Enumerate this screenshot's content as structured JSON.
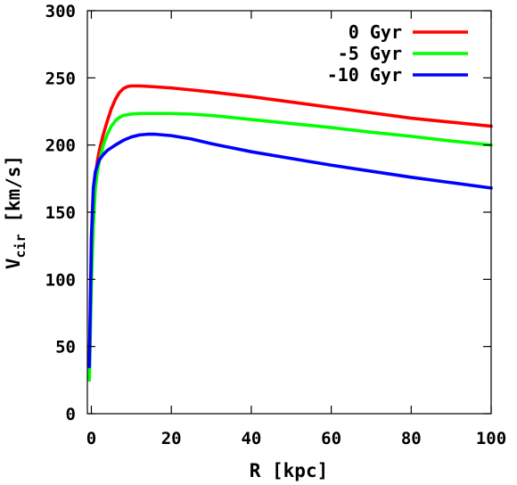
{
  "chart_data": {
    "type": "line",
    "xlabel": "R [kpc]",
    "ylabel_main": "V",
    "ylabel_sub": "cir",
    "ylabel_unit": " [km/s]",
    "xlim": [
      -1,
      100
    ],
    "ylim": [
      0,
      300
    ],
    "xticks": [
      0,
      20,
      40,
      60,
      80,
      100
    ],
    "yticks": [
      0,
      50,
      100,
      150,
      200,
      250,
      300
    ],
    "grid": false,
    "legend_position": "top-right",
    "series": [
      {
        "name": "0 Gyr",
        "color": "#ff0000",
        "x": [
          -0.5,
          0,
          0.5,
          1,
          1.5,
          2,
          3,
          4,
          5,
          6,
          7,
          8,
          9,
          10,
          12,
          15,
          20,
          25,
          30,
          40,
          50,
          60,
          70,
          80,
          90,
          100
        ],
        "y": [
          40,
          110,
          150,
          175,
          188,
          196,
          208,
          218,
          227,
          234,
          239,
          242,
          243.5,
          244,
          244,
          243.5,
          242.5,
          241,
          239.5,
          236,
          232,
          228,
          224,
          220,
          217,
          214
        ]
      },
      {
        "name": "-5 Gyr",
        "color": "#00ff00",
        "x": [
          -0.5,
          0,
          0.5,
          1,
          1.5,
          2,
          3,
          4,
          5,
          6,
          7,
          8,
          10,
          12,
          15,
          20,
          25,
          30,
          40,
          50,
          60,
          70,
          80,
          90,
          100
        ],
        "y": [
          25,
          95,
          140,
          168,
          180,
          188,
          200,
          208,
          214,
          218,
          220.5,
          222,
          223,
          223.5,
          223.5,
          223.5,
          223,
          222,
          219,
          216,
          213,
          209.5,
          206.5,
          203,
          200
        ]
      },
      {
        "name": "-10 Gyr",
        "color": "#0000ff",
        "x": [
          -0.5,
          0,
          0.5,
          1,
          1.5,
          2,
          3,
          4,
          6,
          8,
          10,
          12,
          14,
          16,
          18,
          20,
          25,
          30,
          40,
          50,
          60,
          70,
          80,
          90,
          100
        ],
        "y": [
          35,
          130,
          168,
          180,
          185,
          189,
          193,
          196,
          200,
          203.5,
          206,
          207.5,
          208,
          208,
          207.5,
          207,
          204.5,
          201,
          195,
          190,
          185,
          180.5,
          176,
          172,
          168
        ]
      }
    ]
  }
}
